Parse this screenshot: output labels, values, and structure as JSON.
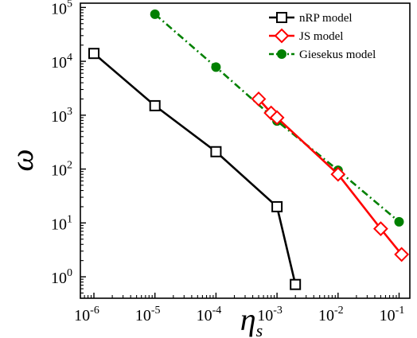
{
  "chart_data": {
    "type": "line",
    "title": "",
    "xlabel": "η",
    "xlabel_sub": "s",
    "ylabel": "ω",
    "xscale": "log",
    "yscale": "log",
    "xlim": [
      6e-07,
      0.15
    ],
    "ylim": [
      0.4,
      120000
    ],
    "xticks": [
      {
        "base": "10",
        "exp": "-6"
      },
      {
        "base": "10",
        "exp": "-5"
      },
      {
        "base": "10",
        "exp": "-4"
      },
      {
        "base": "10",
        "exp": "-3"
      },
      {
        "base": "10",
        "exp": "-2"
      },
      {
        "base": "10",
        "exp": "-1"
      }
    ],
    "yticks": [
      {
        "base": "10",
        "exp": "0"
      },
      {
        "base": "10",
        "exp": "1"
      },
      {
        "base": "10",
        "exp": "2"
      },
      {
        "base": "10",
        "exp": "3"
      },
      {
        "base": "10",
        "exp": "4"
      },
      {
        "base": "10",
        "exp": "5"
      }
    ],
    "legend_position": "top-right",
    "grid": false,
    "series": [
      {
        "name": "nRP model",
        "color": "#000000",
        "marker": "square",
        "line_style": "solid",
        "x": [
          1e-06,
          1e-05,
          0.0001,
          0.001,
          0.002
        ],
        "y": [
          14000,
          1500,
          210,
          20,
          0.72
        ]
      },
      {
        "name": "JS model",
        "color": "#ff0000",
        "marker": "diamond",
        "line_style": "solid",
        "x": [
          0.0005,
          0.0008,
          0.001,
          0.01,
          0.05,
          0.11
        ],
        "y": [
          2000,
          1100,
          900,
          80,
          7.8,
          2.6
        ]
      },
      {
        "name": "Giesekus model",
        "color": "#008000",
        "marker": "circle",
        "line_style": "dash-dot",
        "x": [
          1e-05,
          0.0001,
          0.001,
          0.01,
          0.1
        ],
        "y": [
          75000,
          7800,
          780,
          95,
          10.5
        ]
      }
    ]
  }
}
